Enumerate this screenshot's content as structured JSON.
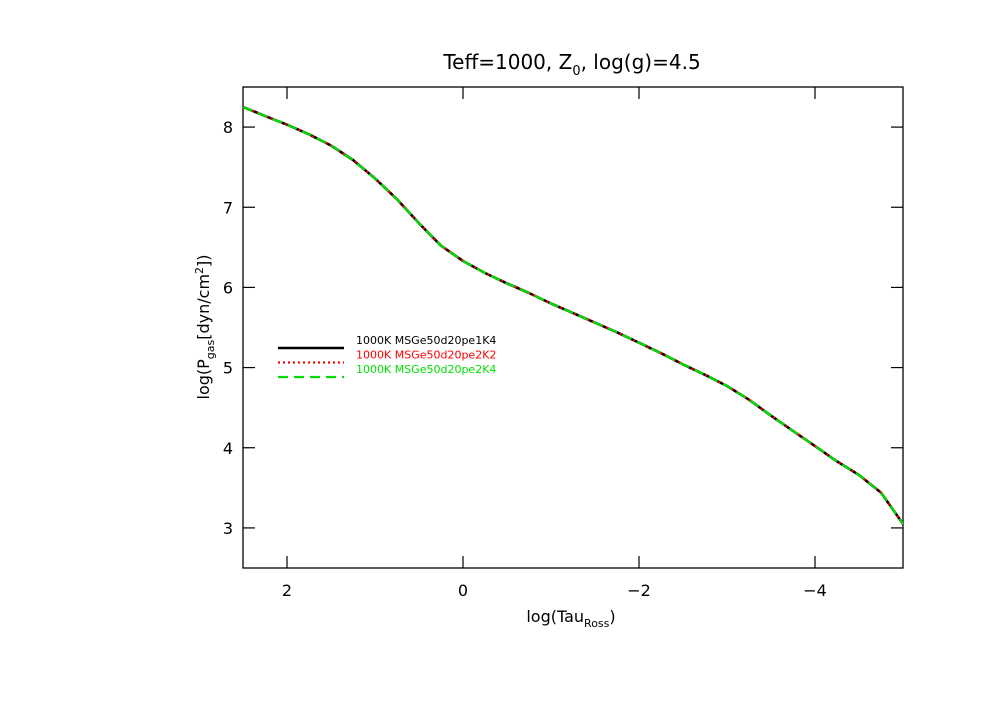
{
  "chart_data": {
    "type": "line",
    "title": "Teff=1000,  Z",
    "title_sub": "0",
    "title_tail": ",  log(g)=4.5",
    "xlabel": "log(Tau",
    "xlabel_sub": "Ross",
    "xlabel_tail": ")",
    "ylabel": "log(P",
    "ylabel_sub": "gas",
    "ylabel_mid": "[dyn/cm",
    "ylabel_sup": "2",
    "ylabel_tail": "])",
    "xlim": [
      2.5,
      -5.0
    ],
    "ylim": [
      2.5,
      8.5
    ],
    "xticks": [
      2,
      0,
      -2,
      -4
    ],
    "xtick_labels": [
      "2",
      "0",
      "−2",
      "−4"
    ],
    "yticks": [
      3,
      4,
      5,
      6,
      7,
      8
    ],
    "ytick_labels": [
      "3",
      "4",
      "5",
      "6",
      "7",
      "8"
    ],
    "grid": false,
    "legend_position": "center-left",
    "x": [
      2.5,
      2.25,
      2.0,
      1.75,
      1.5,
      1.25,
      1.0,
      0.75,
      0.5,
      0.25,
      0.0,
      -0.25,
      -0.5,
      -0.75,
      -1.0,
      -1.25,
      -1.5,
      -1.75,
      -2.0,
      -2.25,
      -2.5,
      -2.75,
      -3.0,
      -3.25,
      -3.5,
      -3.75,
      -4.0,
      -4.25,
      -4.5,
      -4.75,
      -5.0
    ],
    "series": [
      {
        "name": "1000K  MSGe50d20pe1K4",
        "color": "#000000",
        "style": "solid",
        "y": [
          8.25,
          8.14,
          8.03,
          7.91,
          7.77,
          7.59,
          7.36,
          7.1,
          6.8,
          6.52,
          6.33,
          6.18,
          6.05,
          5.93,
          5.8,
          5.68,
          5.56,
          5.44,
          5.31,
          5.18,
          5.04,
          4.91,
          4.77,
          4.6,
          4.4,
          4.21,
          4.02,
          3.83,
          3.66,
          3.44,
          3.05
        ]
      },
      {
        "name": "1000K  MSGe50d20pe2K2",
        "color": "#ff0000",
        "style": "dotted",
        "y": [
          8.25,
          8.14,
          8.03,
          7.91,
          7.77,
          7.59,
          7.36,
          7.1,
          6.8,
          6.52,
          6.33,
          6.18,
          6.05,
          5.93,
          5.8,
          5.68,
          5.56,
          5.44,
          5.31,
          5.18,
          5.04,
          4.91,
          4.77,
          4.6,
          4.4,
          4.21,
          4.02,
          3.83,
          3.66,
          3.44,
          3.05
        ]
      },
      {
        "name": "1000K  MSGe50d20pe2K4",
        "color": "#00e000",
        "style": "dashed",
        "y": [
          8.25,
          8.14,
          8.03,
          7.91,
          7.77,
          7.59,
          7.36,
          7.1,
          6.8,
          6.52,
          6.33,
          6.18,
          6.05,
          5.93,
          5.8,
          5.68,
          5.56,
          5.44,
          5.31,
          5.18,
          5.04,
          4.91,
          4.77,
          4.6,
          4.4,
          4.21,
          4.02,
          3.83,
          3.66,
          3.44,
          3.05
        ]
      }
    ]
  }
}
